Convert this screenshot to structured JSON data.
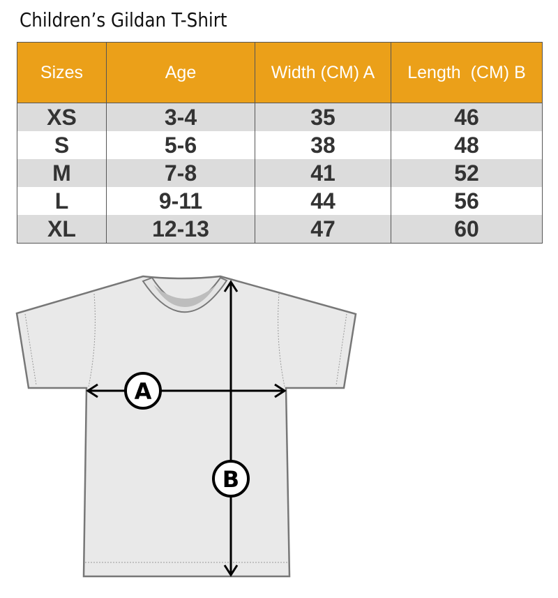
{
  "title": "Children’s Gildan T-Shirt",
  "colors": {
    "header_bg": "#eba019",
    "stripe": "#dcdcdc"
  },
  "table": {
    "headers": [
      "Sizes",
      "Age",
      "Width (CM) A",
      "Length  (CM) B"
    ],
    "rows": [
      [
        "XS",
        "3-4",
        "35",
        "46"
      ],
      [
        "S",
        "5-6",
        "38",
        "48"
      ],
      [
        "M",
        "7-8",
        "41",
        "52"
      ],
      [
        "L",
        "9-11",
        "44",
        "56"
      ],
      [
        "XL",
        "12-13",
        "47",
        "60"
      ]
    ]
  },
  "diagram": {
    "width_label": "A",
    "length_label": "B"
  }
}
